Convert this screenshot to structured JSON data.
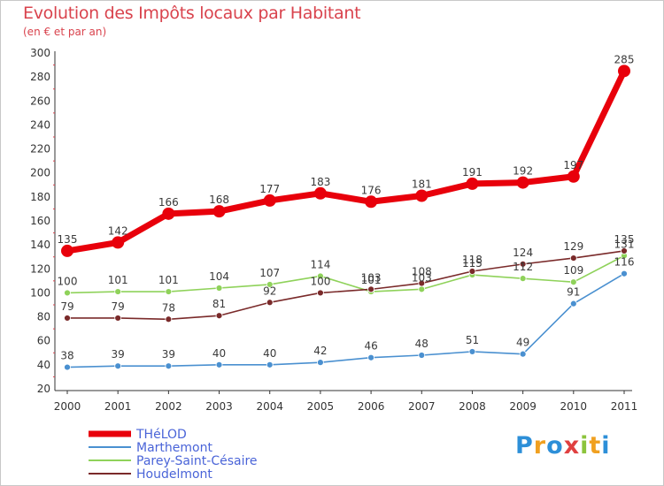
{
  "title": "Evolution des Impôts locaux par Habitant",
  "subtitle": "(en € et par an)",
  "logo": "Proxiti",
  "chart_data": {
    "type": "line",
    "x": [
      2000,
      2001,
      2002,
      2003,
      2004,
      2005,
      2006,
      2007,
      2008,
      2009,
      2010,
      2011
    ],
    "ylim": [
      20,
      300
    ],
    "yticks": [
      20,
      40,
      60,
      80,
      100,
      120,
      140,
      160,
      180,
      200,
      220,
      240,
      260,
      280,
      300
    ],
    "grid": false,
    "legend_position": "bottom-left",
    "series": [
      {
        "name": "THéLOD",
        "color": "#e8000b",
        "labels": [
          "135",
          "142",
          "166",
          "168",
          "177",
          "183",
          "176",
          "181",
          "191",
          "192",
          "197",
          "285"
        ],
        "values": [
          135,
          142,
          166,
          168,
          177,
          183,
          176,
          181,
          191,
          192,
          197,
          285
        ]
      },
      {
        "name": "Marthemont",
        "color": "#4a90d0",
        "labels": [
          "38",
          "39",
          "39",
          "40",
          "40",
          "42",
          "46",
          "48",
          "51",
          "49",
          "91",
          "116"
        ],
        "values": [
          38,
          39,
          39,
          40,
          40,
          42,
          46,
          48,
          51,
          49,
          91,
          116
        ]
      },
      {
        "name": "Parey-Saint-Césaire",
        "color": "#8fd25a",
        "labels": [
          "100",
          "101",
          "101",
          "104",
          "107",
          "114",
          "101",
          "103",
          "115",
          "112",
          "109",
          "131"
        ],
        "values": [
          100,
          101,
          101,
          104,
          107,
          114,
          101,
          103,
          115,
          112,
          109,
          131
        ]
      },
      {
        "name": "Houdelmont",
        "color": "#7a2a2a",
        "labels": [
          "79",
          "79",
          "78",
          "81",
          "92",
          "100",
          "103",
          "108",
          "118",
          "124",
          "129",
          "135"
        ],
        "values": [
          79,
          79,
          78,
          81,
          92,
          100,
          103,
          108,
          118,
          124,
          129,
          135
        ]
      }
    ]
  }
}
